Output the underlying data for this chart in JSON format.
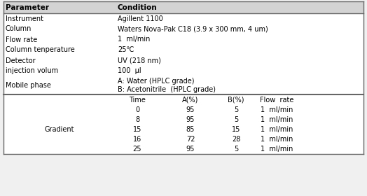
{
  "header_bg": "#d3d3d3",
  "body_bg": "#f0f0f0",
  "table_bg": "#ffffff",
  "border_color": "#666666",
  "header_row": [
    "Parameter",
    "Condition"
  ],
  "rows": [
    [
      "Instrument",
      "Agillent 1100"
    ],
    [
      "Column",
      "Waters Nova-Pak C18 (3.9 x 300 mm, 4 um)"
    ],
    [
      "Flow rate",
      "1  ml/min"
    ],
    [
      "Column tenperature",
      "25℃"
    ],
    [
      "Detector",
      "UV (218 nm)"
    ],
    [
      "injection volum",
      "100  μl"
    ],
    [
      "Mobile phase",
      "A: Water (HPLC grade)\nB: Acetonitrile  (HPLC grade)"
    ]
  ],
  "gradient_label": "Gradient",
  "gradient_header": [
    "Time",
    "A(%)",
    "B(%)",
    "Flow  rate"
  ],
  "gradient_rows": [
    [
      "0",
      "95",
      "5",
      "1  ml/min"
    ],
    [
      "8",
      "95",
      "5",
      "1  ml/min"
    ],
    [
      "15",
      "85",
      "15",
      "1  ml/min"
    ],
    [
      "16",
      "72",
      "28",
      "1  ml/min"
    ],
    [
      "25",
      "95",
      "5",
      "1  ml/min"
    ]
  ],
  "font_size": 7,
  "header_font_size": 7.5,
  "fig_width": 5.24,
  "fig_height": 2.8,
  "dpi": 100
}
